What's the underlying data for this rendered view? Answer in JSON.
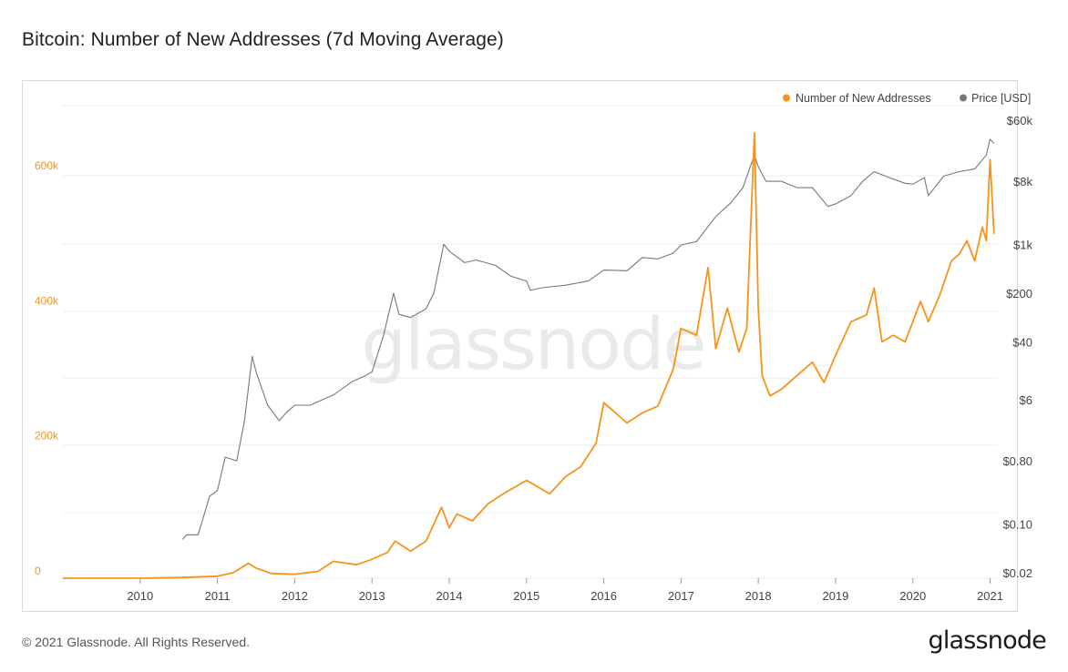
{
  "title": "Bitcoin: Number of New Addresses (7d Moving Average)",
  "footer": {
    "copyright": "© 2021 Glassnode. All Rights Reserved.",
    "logo": "glassnode"
  },
  "watermark": "glassnode",
  "colors": {
    "addresses": "#f7931a",
    "price": "#777777",
    "left_tick": "#f7931a",
    "grid": "#eeeeee"
  },
  "chart_data": {
    "type": "line",
    "title": "Bitcoin: Number of New Addresses (7d Moving Average)",
    "x_range": [
      2009.0,
      2021.1
    ],
    "x_ticks": [
      "2010",
      "2011",
      "2012",
      "2013",
      "2014",
      "2015",
      "2016",
      "2017",
      "2018",
      "2019",
      "2020",
      "2021"
    ],
    "left_axis": {
      "range": [
        0,
        700000
      ],
      "ticks": [
        0,
        200000,
        400000,
        600000
      ],
      "tick_labels": [
        "0",
        "200k",
        "400k",
        "600k"
      ]
    },
    "right_axis": {
      "scale": "log",
      "range": [
        0.02,
        60000
      ],
      "ticks": [
        0.02,
        0.1,
        0.8,
        6,
        40,
        200,
        1000,
        8000,
        60000
      ],
      "tick_labels": [
        "$0.02",
        "$0.10",
        "$0.80",
        "$6",
        "$40",
        "$200",
        "$1k",
        "$8k",
        "$60k"
      ]
    },
    "legend": [
      {
        "name": "Number of New Addresses",
        "color": "#f7931a"
      },
      {
        "name": "Price [USD]",
        "color": "#777777"
      }
    ],
    "series": [
      {
        "name": "Number of New Addresses",
        "axis": "left",
        "x": [
          2009.0,
          2010.0,
          2010.5,
          2011.0,
          2011.2,
          2011.4,
          2011.5,
          2011.7,
          2012.0,
          2012.3,
          2012.5,
          2012.8,
          2013.0,
          2013.2,
          2013.3,
          2013.5,
          2013.7,
          2013.9,
          2014.0,
          2014.1,
          2014.3,
          2014.5,
          2014.7,
          2015.0,
          2015.3,
          2015.5,
          2015.7,
          2015.9,
          2016.0,
          2016.1,
          2016.3,
          2016.5,
          2016.7,
          2016.9,
          2017.0,
          2017.2,
          2017.35,
          2017.45,
          2017.6,
          2017.75,
          2017.85,
          2017.95,
          2018.0,
          2018.05,
          2018.15,
          2018.3,
          2018.5,
          2018.7,
          2018.85,
          2019.0,
          2019.2,
          2019.4,
          2019.5,
          2019.6,
          2019.75,
          2019.9,
          2020.0,
          2020.1,
          2020.2,
          2020.35,
          2020.5,
          2020.6,
          2020.7,
          2020.8,
          2020.9,
          2020.95,
          2021.0,
          2021.05
        ],
        "values": [
          0,
          0,
          1000,
          3000,
          8000,
          22000,
          15000,
          7000,
          6000,
          10000,
          25000,
          20000,
          28000,
          38000,
          55000,
          40000,
          55000,
          105000,
          75000,
          95000,
          85000,
          110000,
          125000,
          145000,
          125000,
          150000,
          165000,
          200000,
          260000,
          250000,
          230000,
          245000,
          255000,
          310000,
          370000,
          360000,
          460000,
          340000,
          400000,
          335000,
          370000,
          660000,
          400000,
          300000,
          270000,
          280000,
          300000,
          320000,
          290000,
          330000,
          380000,
          390000,
          430000,
          350000,
          360000,
          350000,
          380000,
          410000,
          380000,
          420000,
          470000,
          480000,
          500000,
          470000,
          520000,
          500000,
          620000,
          510000
        ]
      },
      {
        "name": "Price [USD]",
        "axis": "right",
        "x": [
          2010.55,
          2010.6,
          2010.75,
          2010.9,
          2011.0,
          2011.1,
          2011.25,
          2011.35,
          2011.45,
          2011.5,
          2011.65,
          2011.8,
          2011.9,
          2012.0,
          2012.2,
          2012.5,
          2012.75,
          2012.9,
          2013.0,
          2013.15,
          2013.28,
          2013.35,
          2013.5,
          2013.7,
          2013.8,
          2013.93,
          2014.0,
          2014.2,
          2014.35,
          2014.6,
          2014.8,
          2015.0,
          2015.05,
          2015.2,
          2015.5,
          2015.8,
          2016.0,
          2016.3,
          2016.5,
          2016.7,
          2016.9,
          2017.0,
          2017.2,
          2017.45,
          2017.65,
          2017.8,
          2017.95,
          2018.0,
          2018.1,
          2018.3,
          2018.5,
          2018.7,
          2018.9,
          2019.0,
          2019.2,
          2019.35,
          2019.5,
          2019.7,
          2019.9,
          2020.0,
          2020.15,
          2020.2,
          2020.4,
          2020.6,
          2020.8,
          2020.95,
          2021.0,
          2021.05
        ],
        "values": [
          0.06,
          0.07,
          0.07,
          0.25,
          0.3,
          0.9,
          0.8,
          3.0,
          25,
          15,
          5,
          3,
          4,
          5,
          5,
          7,
          11,
          13,
          15,
          50,
          200,
          100,
          90,
          120,
          200,
          1000,
          800,
          550,
          600,
          500,
          350,
          300,
          220,
          240,
          260,
          300,
          430,
          420,
          650,
          620,
          750,
          980,
          1100,
          2500,
          4000,
          6500,
          19000,
          13000,
          8000,
          8000,
          6500,
          6500,
          3500,
          3800,
          5000,
          8000,
          11000,
          9000,
          7500,
          7300,
          9000,
          5000,
          9500,
          11000,
          12000,
          19000,
          32000,
          28000
        ]
      }
    ]
  }
}
